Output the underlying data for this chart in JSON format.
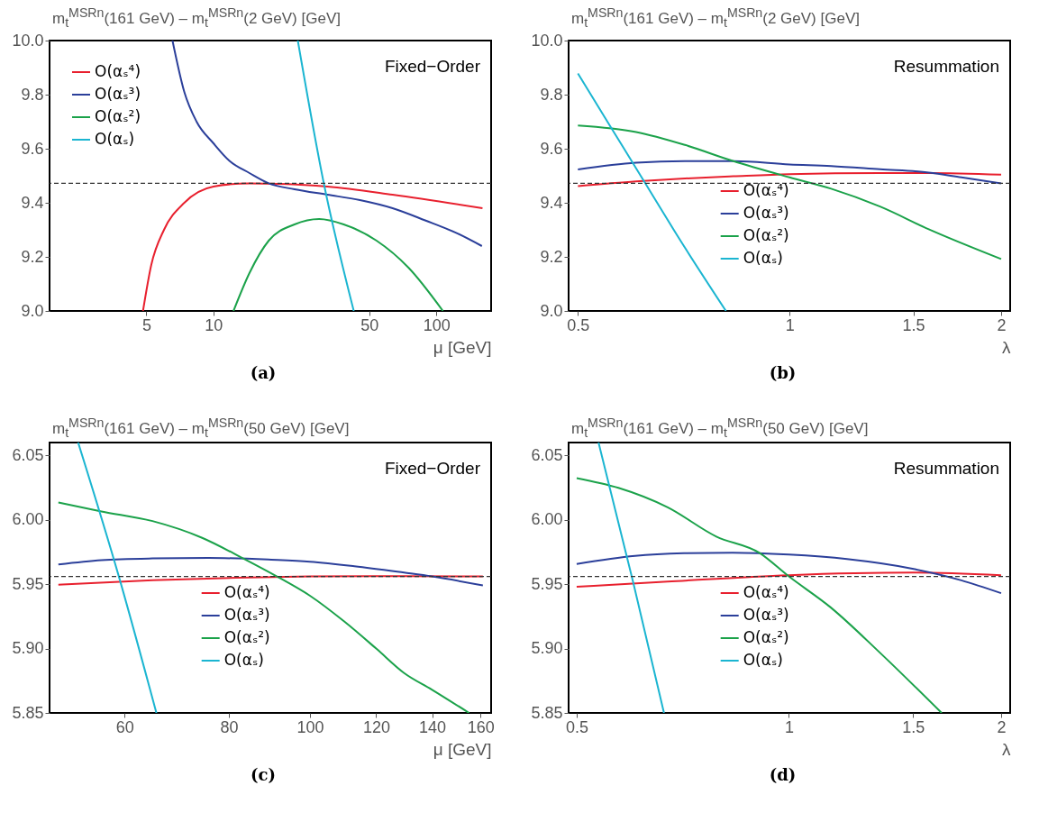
{
  "chart_data": [
    {
      "type": "line",
      "ylabel": "m$_{t}$$^{MSRn}$(161 GeV) – m$_{t}$$^{MSRn}$(2 GeV) [GeV]",
      "xlabel": "μ [GeV]",
      "annotations": [
        "Fixed−Order",
        "(a)"
      ],
      "log": "x",
      "legend": "top left",
      "xlim": [
        1.84,
        176
      ],
      "xticks": [
        5,
        10,
        50,
        100
      ],
      "ylim": [
        9,
        10
      ],
      "yticks": [
        {
          "value": 9,
          "label": "9.0"
        },
        9.2,
        9.4,
        9.6,
        9.8,
        {
          "value": 10,
          "label": "10.0"
        }
      ],
      "ref_lines": [
        {
          "axis": "y",
          "value": 9.472,
          "line_style": "dashed",
          "color": "#333333"
        }
      ],
      "series": [
        {
          "name": "O(αₛ⁴)",
          "color": "#e8202e",
          "x": [
            4.83,
            5.26,
            6.0,
            7.4,
            10.0,
            14.5,
            20,
            32.4,
            63.6,
            161
          ],
          "values": [
            9.0,
            9.17,
            9.3,
            9.4,
            9.46,
            9.472,
            9.47,
            9.46,
            9.43,
            9.38
          ]
        },
        {
          "name": "O(αₛ³)",
          "color": "#2b3f9a",
          "x": [
            6.55,
            7.4,
            8.4,
            10.0,
            11.8,
            14.5,
            17.7,
            23.1,
            32.4,
            45.4,
            63.6,
            89,
            124,
            160
          ],
          "values": [
            10.0,
            9.81,
            9.7,
            9.62,
            9.555,
            9.51,
            9.472,
            9.45,
            9.43,
            9.41,
            9.38,
            9.335,
            9.287,
            9.24
          ]
        },
        {
          "name": "O(αₛ²)",
          "color": "#1ba24a",
          "x": [
            12.3,
            14.5,
            17.7,
            23.1,
            29.8,
            38.4,
            53.9,
            75,
            107
          ],
          "values": [
            9.0,
            9.14,
            9.26,
            9.32,
            9.34,
            9.32,
            9.26,
            9.16,
            9.0
          ]
        },
        {
          "name": "O(αₛ)",
          "color": "#1bb5d1",
          "x": [
            23.9,
            31.3,
            42.6
          ],
          "values": [
            10.0,
            9.47,
            9.0
          ]
        }
      ]
    },
    {
      "type": "line",
      "ylabel": "m$_{t}$$^{MSRn}$(161 GeV) – m$_{t}$$^{MSRn}$(2 GeV) [GeV]",
      "xlabel": "λ",
      "annotations": [
        "Resummation",
        "(b)"
      ],
      "log": "x",
      "legend": "bottom",
      "xlim": [
        0.485,
        2.06
      ],
      "xticks": [
        0.5,
        1,
        1.5,
        2
      ],
      "ylim": [
        9,
        10
      ],
      "yticks": [
        {
          "value": 9,
          "label": "9.0"
        },
        9.2,
        9.4,
        9.6,
        9.8,
        {
          "value": 10,
          "label": "10.0"
        }
      ],
      "ref_lines": [
        {
          "axis": "y",
          "value": 9.472,
          "line_style": "dashed",
          "color": "#333333"
        }
      ],
      "series": [
        {
          "name": "O(αₛ⁴)",
          "color": "#e8202e",
          "x": [
            0.5,
            0.605,
            0.71,
            0.832,
            1.0,
            1.345,
            1.578,
            2.0
          ],
          "values": [
            9.462,
            9.479,
            9.49,
            9.498,
            9.506,
            9.51,
            9.51,
            9.504
          ]
        },
        {
          "name": "O(αₛ³)",
          "color": "#2b3f9a",
          "x": [
            0.5,
            0.605,
            0.71,
            0.832,
            1.0,
            1.146,
            1.345,
            1.578,
            1.756,
            2.0
          ],
          "values": [
            9.523,
            9.548,
            9.554,
            9.554,
            9.542,
            9.536,
            9.524,
            9.512,
            9.494,
            9.472
          ]
        },
        {
          "name": "O(αₛ²)",
          "color": "#1ba24a",
          "x": [
            0.5,
            0.605,
            0.71,
            0.832,
            1.0,
            1.146,
            1.345,
            1.578,
            2.0
          ],
          "values": [
            9.686,
            9.662,
            9.614,
            9.554,
            9.494,
            9.452,
            9.386,
            9.302,
            9.192
          ]
        },
        {
          "name": "O(αₛ)",
          "color": "#1bb5d1",
          "x": [
            0.5,
            0.555,
            0.618,
            0.702,
            0.812
          ],
          "values": [
            9.878,
            9.686,
            9.488,
            9.254,
            9.0
          ]
        }
      ]
    },
    {
      "type": "line",
      "ylabel": "m$_{t}$$^{MSRn}$(161 GeV) – m$_{t}$$^{MSRn}$(50 GeV) [GeV]",
      "xlabel": "μ [GeV]",
      "annotations": [
        "Fixed−Order",
        "(c)"
      ],
      "log": "x",
      "legend": "bottom",
      "xlim": [
        48.8,
        164.7
      ],
      "xticks": [
        60,
        80,
        100,
        120,
        140,
        160
      ],
      "ylim": [
        5.85,
        6.06
      ],
      "yticks": [
        5.85,
        {
          "value": 5.9,
          "label": "5.90"
        },
        5.95,
        {
          "value": 6,
          "label": "6.00"
        },
        6.05
      ],
      "ref_lines": [
        {
          "axis": "y",
          "value": 5.956,
          "line_style": "dashed",
          "color": "#333333"
        }
      ],
      "series": [
        {
          "name": "O(αₛ⁴)",
          "color": "#e8202e",
          "x": [
            50,
            64.8,
            81.6,
            100,
            129.6,
            161
          ],
          "values": [
            5.9496,
            5.953,
            5.955,
            5.956,
            5.9563,
            5.956
          ]
        },
        {
          "name": "O(αₛ³)",
          "color": "#2b3f9a",
          "x": [
            50,
            56.3,
            64.8,
            75.6,
            89.9,
            100,
            113,
            129.6,
            140,
            161
          ],
          "values": [
            5.9653,
            5.9687,
            5.97,
            5.9704,
            5.969,
            5.9675,
            5.964,
            5.959,
            5.956,
            5.949
          ]
        },
        {
          "name": "O(αₛ²)",
          "color": "#1ba24a",
          "x": [
            50,
            56.3,
            64.8,
            74.3,
            83.2,
            91.3,
            100,
            109.9,
            120,
            129.6,
            140,
            155
          ],
          "values": [
            6.0135,
            6.0065,
            5.999,
            5.986,
            5.97,
            5.956,
            5.941,
            5.921,
            5.9,
            5.881,
            5.868,
            5.85
          ]
        },
        {
          "name": "O(αₛ)",
          "color": "#1bb5d1",
          "x": [
            52.8,
            59.0,
            65.5
          ],
          "values": [
            6.06,
            5.957,
            5.85
          ]
        }
      ]
    },
    {
      "type": "line",
      "ylabel": "m$_{t}$$^{MSRn}$(161 GeV) – m$_{t}$$^{MSRn}$(50 GeV) [GeV]",
      "xlabel": "λ",
      "annotations": [
        "Resummation",
        "(d)"
      ],
      "log": "x",
      "legend": "bottom",
      "xlim": [
        0.487,
        2.06
      ],
      "xticks": [
        0.5,
        1,
        1.5,
        2
      ],
      "ylim": [
        5.85,
        6.06
      ],
      "yticks": [
        5.85,
        {
          "value": 5.9,
          "label": "5.90"
        },
        5.95,
        {
          "value": 6,
          "label": "6.00"
        },
        6.05
      ],
      "ref_lines": [
        {
          "axis": "y",
          "value": 5.956,
          "line_style": "dashed",
          "color": "#333333"
        }
      ],
      "series": [
        {
          "name": "O(αₛ⁴)",
          "color": "#e8202e",
          "x": [
            0.5,
            0.673,
            1.0,
            1.497,
            2.0
          ],
          "values": [
            5.948,
            5.952,
            5.957,
            5.959,
            5.957
          ]
        },
        {
          "name": "O(αₛ³)",
          "color": "#2b3f9a",
          "x": [
            0.5,
            0.605,
            0.71,
            0.832,
            1.0,
            1.209,
            1.497,
            1.756,
            2.0
          ],
          "values": [
            5.9657,
            5.972,
            5.974,
            5.9745,
            5.973,
            5.9695,
            5.962,
            5.953,
            5.943
          ]
        },
        {
          "name": "O(αₛ²)",
          "color": "#1ba24a",
          "x": [
            0.5,
            0.573,
            0.673,
            0.789,
            0.907,
            1.0,
            1.146,
            1.345,
            1.647
          ],
          "values": [
            6.0324,
            6.0248,
            6.0097,
            5.987,
            5.9745,
            5.956,
            5.932,
            5.897,
            5.85
          ]
        },
        {
          "name": "O(αₛ)",
          "color": "#1bb5d1",
          "x": [
            0.537,
            0.601,
            0.665
          ],
          "values": [
            6.06,
            5.952,
            5.85
          ]
        }
      ]
    }
  ]
}
